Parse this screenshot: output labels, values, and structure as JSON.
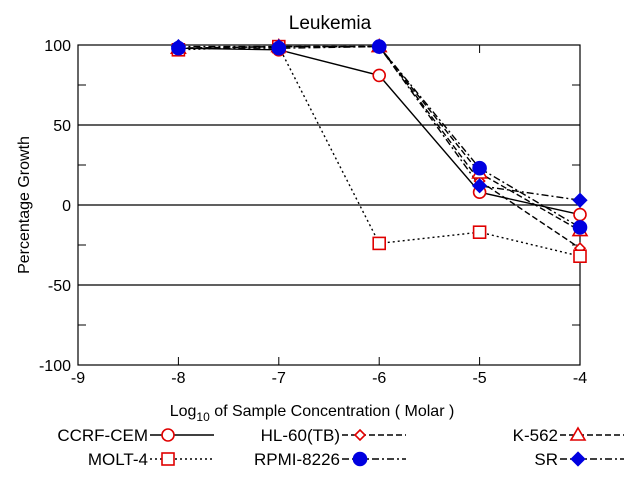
{
  "chart_data": {
    "type": "line",
    "title": "Leukemia",
    "xlabel": {
      "prefix": "Log",
      "sub": "10",
      "rest": " of Sample Concentration ( Molar )"
    },
    "ylabel": "Percentage Growth",
    "xlim": [
      -9,
      -4
    ],
    "ylim": [
      -100,
      100
    ],
    "x_ticks": [
      -9,
      -8,
      -7,
      -6,
      -5,
      -4
    ],
    "y_ticks": [
      100,
      50,
      0,
      -50,
      -100
    ],
    "grid_lines_y": [
      50,
      0,
      -50
    ],
    "series": [
      {
        "name": "CCRF-CEM",
        "marker": "circle-open",
        "dash": "solid",
        "color": "#e00000",
        "x": [
          -8,
          -7,
          -6,
          -5,
          -4
        ],
        "y": [
          98,
          97,
          81,
          8,
          -6
        ]
      },
      {
        "name": "HL-60(TB)",
        "marker": "diamond-open",
        "dash": "dash",
        "color": "#e00000",
        "x": [
          -8,
          -7,
          -6,
          -5,
          -4
        ],
        "y": [
          98,
          99,
          99,
          15,
          -27
        ]
      },
      {
        "name": "K-562",
        "marker": "triangle-open",
        "dash": "dash",
        "color": "#e00000",
        "x": [
          -8,
          -7,
          -6,
          -5,
          -4
        ],
        "y": [
          98,
          99,
          99,
          20,
          -16
        ]
      },
      {
        "name": "MOLT-4",
        "marker": "square-open",
        "dash": "dot",
        "color": "#e00000",
        "x": [
          -8,
          -7,
          -6,
          -5,
          -4
        ],
        "y": [
          97,
          99,
          -24,
          -17,
          -32
        ]
      },
      {
        "name": "RPMI-8226",
        "marker": "circle-filled",
        "dash": "dashdot",
        "color": "#0000e0",
        "x": [
          -8,
          -7,
          -6,
          -5,
          -4
        ],
        "y": [
          98,
          98,
          99,
          23,
          -14
        ]
      },
      {
        "name": "SR",
        "marker": "diamond-filled",
        "dash": "dashdot",
        "color": "#0000e0",
        "x": [
          -8,
          -7,
          -6,
          -5,
          -4
        ],
        "y": [
          99,
          99,
          99,
          12,
          3
        ]
      }
    ]
  }
}
